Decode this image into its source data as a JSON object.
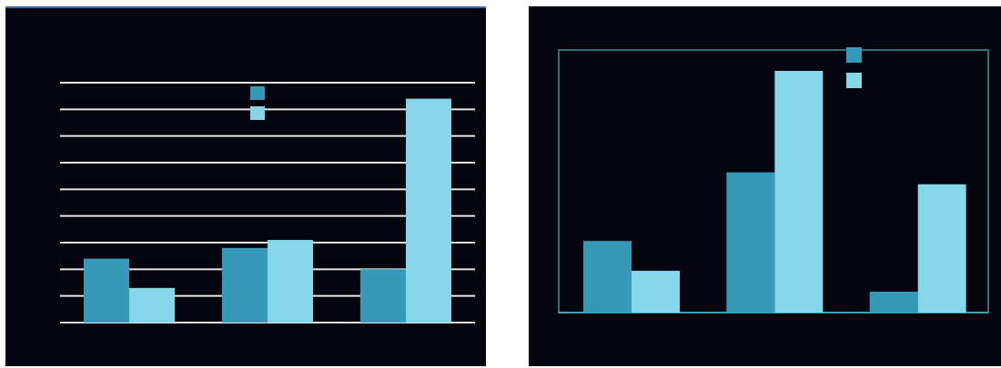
{
  "colors": {
    "background": "#04050f",
    "series_dark": "#3599b8",
    "series_light": "#85d6e8",
    "gridline": "#e6e6e6",
    "axis_frame": "#2e6f78"
  },
  "chart_data": [
    {
      "type": "bar",
      "categories": [
        "",
        "",
        ""
      ],
      "series": [
        {
          "values": [
            2.4,
            2.8,
            2.0
          ]
        },
        {
          "values": [
            1.3,
            3.1,
            8.4
          ]
        }
      ],
      "ylim": [
        0,
        9
      ],
      "grid": true,
      "legend_placement": "top-center",
      "title": "",
      "xlabel": "",
      "ylabel": ""
    },
    {
      "type": "bar",
      "categories": [
        "",
        "",
        ""
      ],
      "series": [
        {
          "values": [
            24,
            47,
            7
          ]
        },
        {
          "values": [
            14,
            81,
            43
          ]
        }
      ],
      "ylim": [
        0,
        88
      ],
      "grid": false,
      "legend_placement": "top-right",
      "title": "",
      "xlabel": "",
      "ylabel": ""
    }
  ]
}
